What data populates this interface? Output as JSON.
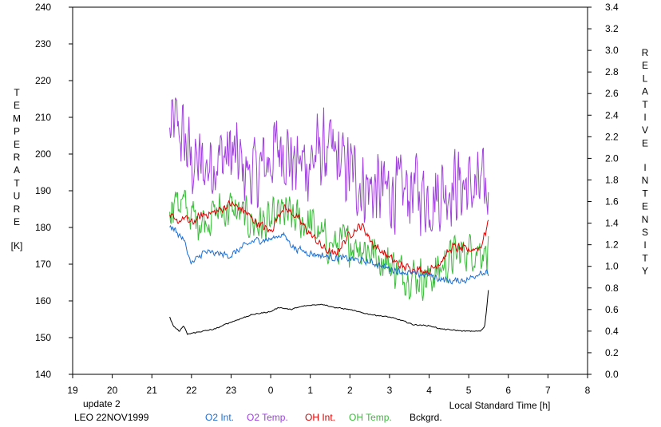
{
  "chart_data": {
    "type": "line",
    "xlabel": "Local Standard Time [h]",
    "ylabel_left_letters": [
      "T",
      "E",
      "M",
      "P",
      "E",
      "R",
      "A",
      "T",
      "U",
      "R",
      "E"
    ],
    "ylabel_left_unit": "[K]",
    "ylabel_right_letters_1": [
      "R",
      "E",
      "L",
      "A",
      "T",
      "I",
      "V",
      "E"
    ],
    "ylabel_right_letters_2": [
      "I",
      "N",
      "T",
      "E",
      "N",
      "S",
      "I",
      "T",
      "Y"
    ],
    "x_ticks": [
      19,
      20,
      21,
      22,
      23,
      0,
      1,
      2,
      3,
      4,
      5,
      6,
      7,
      8
    ],
    "x_tick_labels": [
      "19",
      "20",
      "21",
      "22",
      "23",
      "0",
      "1",
      "2",
      "3",
      "4",
      "5",
      "6",
      "7",
      "8"
    ],
    "xlim": [
      19,
      32
    ],
    "ylim_left": [
      140,
      240
    ],
    "yticks_left": [
      "140",
      "150",
      "160",
      "170",
      "180",
      "190",
      "200",
      "210",
      "220",
      "230",
      "240"
    ],
    "ylim_right": [
      0.0,
      3.4
    ],
    "yticks_right": [
      "0.0",
      "0.2",
      "0.4",
      "0.6",
      "0.8",
      "1.0",
      "1.2",
      "1.4",
      "1.6",
      "1.8",
      "2.0",
      "2.2",
      "2.4",
      "2.6",
      "2.8",
      "3.0",
      "3.2",
      "3.4"
    ],
    "series": [
      {
        "name": "O2 Temp.",
        "axis": "left",
        "color": "#a040e0",
        "noise": 13,
        "x": [
          21.45,
          21.6,
          21.8,
          22.0,
          22.3,
          22.6,
          23.0,
          23.3,
          23.6,
          24.0,
          24.3,
          24.6,
          25.0,
          25.3,
          25.6,
          26.0,
          26.3,
          26.6,
          27.0,
          27.3,
          27.6,
          28.0,
          28.3,
          28.6,
          29.0,
          29.3,
          29.5
        ],
        "y": [
          205,
          208,
          204,
          198,
          196,
          199,
          200,
          196,
          194,
          199,
          203,
          197,
          198,
          201,
          199,
          195,
          192,
          190,
          190,
          189,
          191,
          188,
          190,
          192,
          191,
          190,
          189
        ]
      },
      {
        "name": "OH Temp.",
        "axis": "left",
        "color": "#3cbc3c",
        "noise": 7,
        "x": [
          21.45,
          21.6,
          21.8,
          22.0,
          22.3,
          22.6,
          23.0,
          23.3,
          23.6,
          24.0,
          24.3,
          24.6,
          25.0,
          25.3,
          25.6,
          26.0,
          26.3,
          26.6,
          27.0,
          27.3,
          27.6,
          28.0,
          28.3,
          28.6,
          29.0,
          29.3,
          29.5
        ],
        "y": [
          186,
          188,
          186,
          183,
          182,
          184,
          185,
          183,
          181,
          181,
          184,
          182,
          181,
          177,
          175,
          176,
          175,
          173,
          170,
          168,
          167,
          166,
          169,
          172,
          174,
          174,
          174
        ]
      },
      {
        "name": "OH Int.",
        "axis": "right",
        "color": "#e00000",
        "noise": 0.05,
        "x": [
          21.45,
          21.6,
          21.8,
          22.0,
          22.3,
          22.6,
          23.0,
          23.3,
          23.6,
          24.0,
          24.3,
          24.6,
          25.0,
          25.3,
          25.6,
          26.0,
          26.3,
          26.6,
          27.0,
          27.3,
          27.6,
          28.0,
          28.3,
          28.6,
          29.0,
          29.3,
          29.45,
          29.5
        ],
        "y": [
          1.48,
          1.4,
          1.45,
          1.4,
          1.48,
          1.5,
          1.58,
          1.52,
          1.42,
          1.32,
          1.55,
          1.48,
          1.3,
          1.18,
          1.1,
          1.3,
          1.38,
          1.2,
          1.08,
          1.0,
          0.98,
          0.95,
          1.05,
          1.18,
          1.15,
          1.18,
          1.35,
          1.42
        ]
      },
      {
        "name": "O2 Int.",
        "axis": "right",
        "color": "#1e6ed2",
        "noise": 0.04,
        "x": [
          21.45,
          21.6,
          21.8,
          22.0,
          22.3,
          22.6,
          23.0,
          23.3,
          23.6,
          24.0,
          24.3,
          24.6,
          25.0,
          25.3,
          25.6,
          26.0,
          26.3,
          26.6,
          27.0,
          27.3,
          27.6,
          28.0,
          28.3,
          28.6,
          29.0,
          29.3,
          29.5
        ],
        "y": [
          1.38,
          1.33,
          1.25,
          1.02,
          1.13,
          1.12,
          1.1,
          1.18,
          1.24,
          1.25,
          1.3,
          1.17,
          1.12,
          1.1,
          1.08,
          1.07,
          1.05,
          1.03,
          0.98,
          0.95,
          0.93,
          0.92,
          0.88,
          0.86,
          0.88,
          0.95,
          0.93
        ]
      },
      {
        "name": "Bckgrd.",
        "axis": "right",
        "color": "#000000",
        "noise": 0.006,
        "x": [
          21.45,
          21.55,
          21.7,
          21.8,
          21.9,
          22.0,
          22.3,
          22.6,
          22.9,
          23.2,
          23.5,
          23.8,
          24.0,
          24.2,
          24.5,
          24.8,
          25.0,
          25.3,
          25.6,
          26.0,
          26.3,
          26.6,
          27.0,
          27.3,
          27.6,
          28.0,
          28.3,
          28.6,
          28.9,
          29.1,
          29.3,
          29.4,
          29.45,
          29.5
        ],
        "y": [
          0.53,
          0.44,
          0.4,
          0.45,
          0.37,
          0.38,
          0.4,
          0.42,
          0.47,
          0.51,
          0.55,
          0.57,
          0.58,
          0.62,
          0.6,
          0.63,
          0.64,
          0.65,
          0.62,
          0.6,
          0.57,
          0.55,
          0.53,
          0.5,
          0.46,
          0.45,
          0.42,
          0.41,
          0.4,
          0.4,
          0.4,
          0.44,
          0.6,
          0.8
        ]
      }
    ],
    "annotation_update": "update 2",
    "annotation_station": "LEO 22NOV1999",
    "legend": [
      {
        "label": "O2 Int.",
        "color": "#1e6ed2"
      },
      {
        "label": "O2 Temp.",
        "color": "#a040e0"
      },
      {
        "label": "OH Int.",
        "color": "#e00000"
      },
      {
        "label": "OH Temp.",
        "color": "#3cbc3c"
      },
      {
        "label": "Bckgrd.",
        "color": "#000000"
      }
    ],
    "annotation_update_color": "#20c020",
    "grid": false
  }
}
